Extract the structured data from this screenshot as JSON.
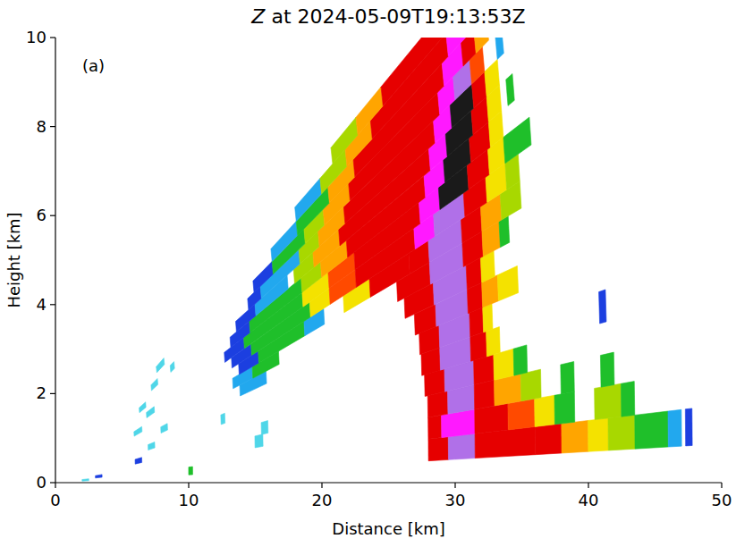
{
  "chart_data": {
    "type": "rhi",
    "title": "Z at 2024-05-09T19:13:53Z",
    "annotations": [
      "(a)"
    ],
    "x_label": "Distance [km]",
    "y_label": "Height [km]",
    "xlim": [
      0,
      50
    ],
    "ylim": [
      0,
      10
    ],
    "xticks": [
      0,
      10,
      20,
      30,
      40,
      50
    ],
    "yticks": [
      0,
      2,
      4,
      6,
      8,
      10
    ],
    "rays": [
      {
        "elevation": 1.5,
        "segments": [
          [
            2,
            2.5,
            4
          ],
          [
            10,
            10.3,
            20
          ],
          [
            28,
            29.5,
            45
          ],
          [
            29.5,
            31.5,
            56
          ],
          [
            31.5,
            36,
            45
          ],
          [
            36,
            38,
            40
          ],
          [
            38,
            40,
            34
          ],
          [
            40,
            41.5,
            30
          ],
          [
            41.5,
            43.5,
            26
          ],
          [
            43.5,
            46,
            20
          ],
          [
            46,
            47,
            12
          ],
          [
            47.3,
            47.8,
            8
          ]
        ]
      },
      {
        "elevation": 2.5,
        "segments": [
          [
            3,
            3.5,
            6
          ],
          [
            28,
            29,
            42
          ],
          [
            29,
            31.5,
            55
          ],
          [
            31.5,
            34,
            44
          ],
          [
            34,
            36,
            38
          ],
          [
            36,
            37.5,
            30
          ],
          [
            37.5,
            39,
            22
          ],
          [
            40.5,
            42.5,
            24
          ],
          [
            42.5,
            43.5,
            20
          ]
        ]
      },
      {
        "elevation": 3.5,
        "segments": [
          [
            15,
            15.6,
            2
          ],
          [
            28,
            29.5,
            44
          ],
          [
            29.5,
            31.5,
            56
          ],
          [
            31.5,
            33,
            44
          ],
          [
            33,
            35,
            34
          ],
          [
            35,
            36.5,
            24
          ],
          [
            38,
            39,
            20
          ],
          [
            41,
            42,
            20
          ]
        ]
      },
      {
        "elevation": 4.5,
        "segments": [
          [
            6,
            6.5,
            10
          ],
          [
            15.5,
            16,
            2
          ],
          [
            27.8,
            29.3,
            44
          ],
          [
            29.3,
            31.5,
            57
          ],
          [
            31.5,
            33,
            42
          ],
          [
            33,
            34.5,
            30
          ],
          [
            34.5,
            35.5,
            22
          ]
        ]
      },
      {
        "elevation": 5.5,
        "segments": [
          [
            27.6,
            29,
            44
          ],
          [
            29,
            31.3,
            57
          ],
          [
            31.3,
            32.5,
            42
          ],
          [
            32.5,
            33.5,
            28
          ],
          [
            41,
            41.5,
            10
          ]
        ]
      },
      {
        "elevation": 6.5,
        "segments": [
          [
            7,
            7.5,
            4
          ],
          [
            12.5,
            12.8,
            2
          ],
          [
            27.5,
            29,
            44
          ],
          [
            29,
            31.3,
            58
          ],
          [
            31.3,
            32.3,
            40
          ],
          [
            32.3,
            33,
            30
          ]
        ]
      },
      {
        "elevation": 7.5,
        "segments": [
          [
            27.2,
            28.8,
            44
          ],
          [
            28.8,
            31.2,
            58
          ],
          [
            31.2,
            32.3,
            40
          ],
          [
            32.3,
            33.5,
            34
          ],
          [
            33.5,
            35,
            30
          ]
        ]
      },
      {
        "elevation": 8.5,
        "segments": [
          [
            8,
            8.5,
            3
          ],
          [
            14,
            16,
            12
          ],
          [
            26.5,
            28.7,
            44
          ],
          [
            28.7,
            31.2,
            58
          ],
          [
            31.2,
            32.3,
            40
          ],
          [
            32.3,
            33.3,
            30
          ]
        ]
      },
      {
        "elevation": 9.5,
        "segments": [
          [
            13.5,
            15,
            14
          ],
          [
            15,
            17,
            20
          ],
          [
            26,
            28.5,
            43
          ],
          [
            28.5,
            31,
            59
          ],
          [
            31,
            32.5,
            42
          ],
          [
            32.5,
            33.8,
            32
          ],
          [
            33.8,
            34.5,
            22
          ]
        ]
      },
      {
        "elevation": 10.5,
        "segments": [
          [
            6,
            6.6,
            3
          ],
          [
            14,
            15.5,
            10
          ],
          [
            15.5,
            19,
            20
          ],
          [
            19,
            20.5,
            16
          ],
          [
            22,
            24,
            30
          ],
          [
            24,
            27,
            42
          ],
          [
            27,
            28.5,
            46
          ],
          [
            28.5,
            31,
            60
          ],
          [
            31,
            32.5,
            42
          ],
          [
            32.5,
            34,
            32
          ],
          [
            34,
            35.5,
            24
          ]
        ]
      },
      {
        "elevation": 11.5,
        "segments": [
          [
            13.5,
            15,
            10
          ],
          [
            15,
            19.5,
            21
          ],
          [
            19.5,
            21,
            28
          ],
          [
            21,
            23,
            36
          ],
          [
            23,
            27.5,
            44
          ],
          [
            27.5,
            29,
            50
          ],
          [
            29,
            31.3,
            60
          ],
          [
            31.3,
            33,
            42
          ],
          [
            33,
            34.5,
            30
          ],
          [
            34.5,
            35.5,
            24
          ]
        ]
      },
      {
        "elevation": 12.5,
        "segments": [
          [
            7,
            7.6,
            2
          ],
          [
            13,
            14.5,
            8
          ],
          [
            14.5,
            19,
            22
          ],
          [
            19,
            21,
            30
          ],
          [
            21,
            23,
            38
          ],
          [
            23,
            28,
            45
          ],
          [
            28,
            29.5,
            52
          ],
          [
            29.5,
            31.7,
            62
          ],
          [
            31.7,
            33.3,
            42
          ],
          [
            33.3,
            34.5,
            30
          ],
          [
            34.5,
            36.5,
            22
          ]
        ]
      },
      {
        "elevation": 13.5,
        "segments": [
          [
            13.5,
            15,
            8
          ],
          [
            15,
            19,
            18
          ],
          [
            19,
            20.5,
            26
          ],
          [
            20.5,
            22.5,
            34
          ],
          [
            22.5,
            28.5,
            45
          ],
          [
            28.5,
            30,
            53
          ],
          [
            30,
            32,
            64
          ],
          [
            32,
            33.5,
            42
          ],
          [
            33.5,
            34.5,
            28
          ]
        ]
      },
      {
        "elevation": 14.5,
        "segments": [
          [
            6.5,
            7,
            3
          ],
          [
            14,
            15.5,
            10
          ],
          [
            15.5,
            18,
            16
          ],
          [
            18.5,
            20,
            24
          ],
          [
            20,
            22,
            32
          ],
          [
            22,
            29,
            45
          ],
          [
            29,
            30.3,
            54
          ],
          [
            30.3,
            32.3,
            66
          ],
          [
            32.3,
            33.5,
            42
          ],
          [
            33.5,
            34.5,
            28
          ],
          [
            35,
            35.5,
            20
          ]
        ]
      },
      {
        "elevation": 15.5,
        "segments": [
          [
            15,
            16,
            8
          ],
          [
            16,
            19,
            15
          ],
          [
            19,
            20.5,
            24
          ],
          [
            20.5,
            22.5,
            32
          ],
          [
            22.5,
            29.5,
            44
          ],
          [
            29.5,
            30.8,
            54
          ],
          [
            30.8,
            32.5,
            64
          ],
          [
            32.5,
            33.5,
            40
          ],
          [
            33.5,
            34.5,
            28
          ]
        ]
      },
      {
        "elevation": 16.5,
        "segments": [
          [
            7.5,
            8,
            2
          ],
          [
            9,
            9.3,
            2
          ],
          [
            15.5,
            17,
            10
          ],
          [
            17,
            19.5,
            18
          ],
          [
            19.5,
            21,
            26
          ],
          [
            21,
            23,
            34
          ],
          [
            23,
            30,
            44
          ],
          [
            30,
            31.2,
            54
          ],
          [
            31.2,
            32.5,
            60
          ],
          [
            32.5,
            33.5,
            38
          ],
          [
            34.5,
            35,
            12
          ]
        ]
      },
      {
        "elevation": 17.5,
        "segments": [
          [
            17,
            19,
            12
          ],
          [
            19,
            21.5,
            22
          ],
          [
            21.5,
            23.5,
            32
          ],
          [
            23.5,
            30.5,
            43
          ],
          [
            30.5,
            32,
            54
          ],
          [
            32,
            33,
            44
          ],
          [
            33,
            34,
            32
          ],
          [
            35.5,
            36,
            10
          ]
        ]
      },
      {
        "elevation": 18.5,
        "segments": [
          [
            8,
            8.6,
            3
          ],
          [
            19,
            21,
            14
          ],
          [
            21,
            23,
            26
          ],
          [
            23,
            25,
            34
          ],
          [
            25,
            31,
            43
          ],
          [
            31,
            32.5,
            52
          ],
          [
            32.5,
            33.5,
            40
          ],
          [
            33.5,
            34.3,
            30
          ],
          [
            35,
            35.5,
            10
          ]
        ]
      },
      {
        "elevation": 19.5,
        "segments": [
          [
            22,
            24,
            26
          ],
          [
            24,
            26,
            34
          ],
          [
            26,
            31.5,
            42
          ],
          [
            31.5,
            33,
            50
          ],
          [
            33,
            34,
            38
          ],
          [
            34.5,
            35,
            10
          ],
          [
            36,
            36.5,
            10
          ]
        ]
      }
    ]
  }
}
